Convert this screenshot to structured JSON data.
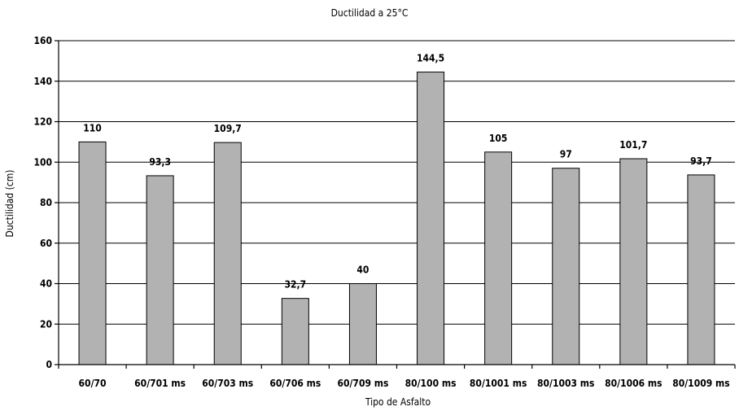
{
  "chart_data": {
    "type": "bar",
    "title": "Ductilidad a 25°C",
    "xlabel": "Tipo de Asfalto",
    "ylabel": "Ductilidad (cm)",
    "ylim": [
      0,
      160
    ],
    "yticks": [
      0,
      20,
      40,
      60,
      80,
      100,
      120,
      140,
      160
    ],
    "grid": true,
    "legend": "none",
    "bar_color": "#b2b2b2",
    "categories": [
      "60/70",
      "60/701 ms",
      "60/703 ms",
      "60/706 ms",
      "60/709 ms",
      "80/100 ms",
      "80/1001 ms",
      "80/1003 ms",
      "80/1006 ms",
      "80/1009 ms"
    ],
    "values": [
      110,
      93.3,
      109.7,
      32.7,
      40,
      144.5,
      105,
      97,
      101.7,
      93.7
    ],
    "data_labels": [
      "110",
      "93,3",
      "109,7",
      "32,7",
      "40",
      "144,5",
      "105",
      "97",
      "101,7",
      "93,7"
    ]
  }
}
